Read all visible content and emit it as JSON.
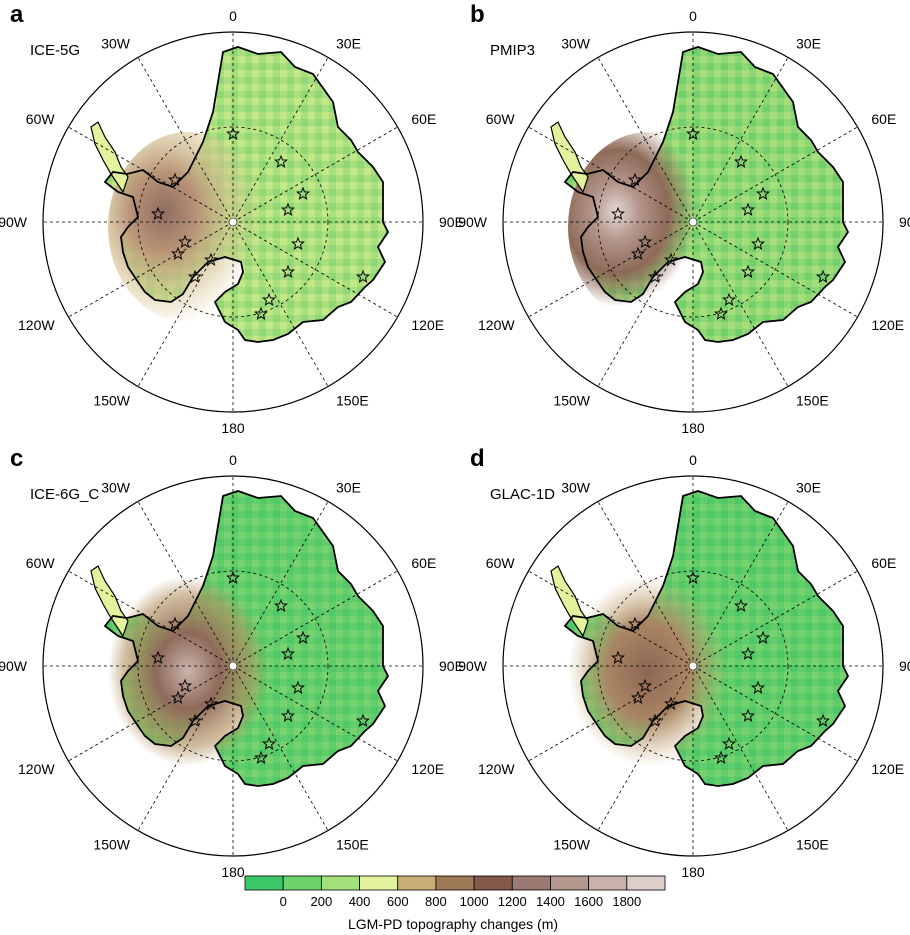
{
  "panels": [
    {
      "letter": "a",
      "model": "ICE-5G",
      "style": "icefive"
    },
    {
      "letter": "b",
      "model": "PMIP3",
      "style": "pmip"
    },
    {
      "letter": "c",
      "model": "ICE-6G_C",
      "style": "icesix"
    },
    {
      "letter": "d",
      "model": "GLAC-1D",
      "style": "glac"
    }
  ],
  "longitude_labels": [
    "0",
    "30E",
    "60E",
    "90E",
    "120E",
    "150E",
    "180",
    "150W",
    "120W",
    "90W",
    "60W",
    "30W"
  ],
  "colorbar": {
    "title": "LGM-PD topography changes (m)",
    "ticks": [
      "0",
      "200",
      "400",
      "600",
      "800",
      "1000",
      "1200",
      "1400",
      "1600",
      "1800"
    ],
    "colors": [
      "#3cc96a",
      "#6dd46d",
      "#a3e07a",
      "#e3f29c",
      "#c9ad76",
      "#9e7a57",
      "#84584a",
      "#9a7a72",
      "#b49890",
      "#c9b2aa",
      "#ddd0cc"
    ]
  }
}
